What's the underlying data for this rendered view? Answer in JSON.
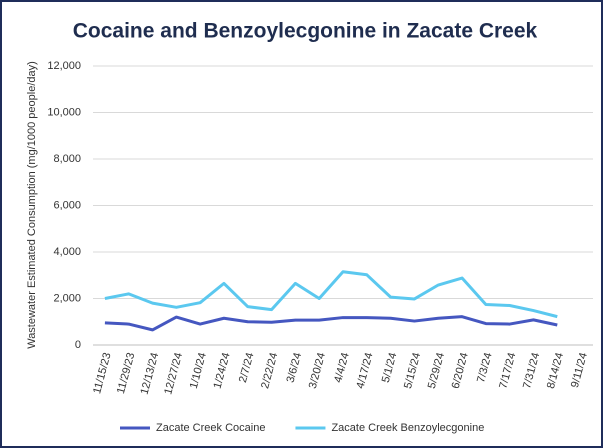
{
  "chart_data": {
    "type": "line",
    "title": "Cocaine and Benzoylecgonine in Zacate Creek",
    "y_label": "Wastewater Estimated Consumption (mg/1000 people/day)",
    "categories": [
      "11/15/23",
      "11/29/23",
      "12/13/24",
      "12/27/24",
      "1/10/24",
      "1/24/24",
      "2/7/24",
      "2/22/24",
      "3/6/24",
      "3/20/24",
      "4/4/24",
      "4/17/24",
      "5/1/24",
      "5/15/24",
      "5/29/24",
      "6/20/24",
      "7/3/24",
      "7/17/24",
      "7/31/24",
      "8/14/24",
      "9/11/24"
    ],
    "series": [
      {
        "name": "Zacate Creek Cocaine",
        "color": "#4557c0",
        "values": [
          950,
          900,
          650,
          1200,
          900,
          1150,
          1000,
          980,
          1070,
          1070,
          1180,
          1180,
          1150,
          1030,
          1150,
          1220,
          920,
          900,
          1080,
          860,
          null
        ]
      },
      {
        "name": "Zacate Creek Benzoylecgonine",
        "color": "#5bc8ef",
        "values": [
          2000,
          2200,
          1800,
          1620,
          1820,
          2650,
          1650,
          1520,
          2650,
          2000,
          3150,
          3020,
          2060,
          1980,
          2580,
          2880,
          1740,
          1700,
          1480,
          1220,
          null
        ]
      }
    ],
    "ylim": [
      0,
      12000
    ],
    "yticks": [
      0,
      {
        "value": 2000,
        "label": "2,000"
      },
      {
        "value": 4000,
        "label": "4,000"
      },
      {
        "value": 6000,
        "label": "6,000"
      },
      {
        "value": 8000,
        "label": "8,000"
      },
      {
        "value": 10000,
        "label": "10,000"
      },
      {
        "value": 12000,
        "label": "12,000"
      }
    ],
    "grid": true,
    "legend": "bottom"
  }
}
